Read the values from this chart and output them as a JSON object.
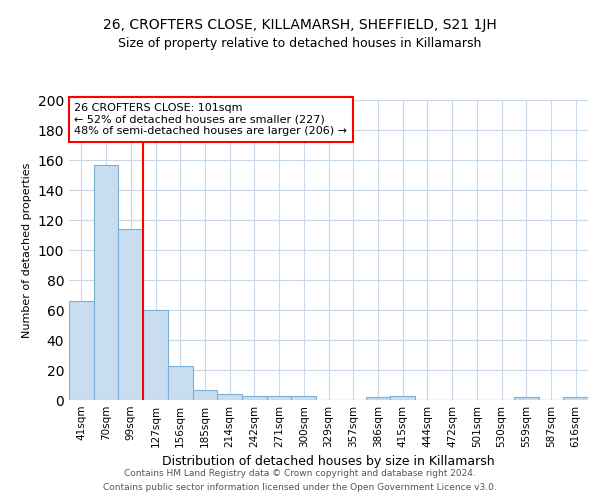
{
  "title1": "26, CROFTERS CLOSE, KILLAMARSH, SHEFFIELD, S21 1JH",
  "title2": "Size of property relative to detached houses in Killamarsh",
  "xlabel": "Distribution of detached houses by size in Killamarsh",
  "ylabel": "Number of detached properties",
  "categories": [
    "41sqm",
    "70sqm",
    "99sqm",
    "127sqm",
    "156sqm",
    "185sqm",
    "214sqm",
    "242sqm",
    "271sqm",
    "300sqm",
    "329sqm",
    "357sqm",
    "386sqm",
    "415sqm",
    "444sqm",
    "472sqm",
    "501sqm",
    "530sqm",
    "559sqm",
    "587sqm",
    "616sqm"
  ],
  "values": [
    66,
    157,
    114,
    60,
    23,
    7,
    4,
    3,
    3,
    3,
    0,
    0,
    2,
    3,
    0,
    0,
    0,
    0,
    2,
    0,
    2
  ],
  "bar_color": "#c9ddf0",
  "bar_edge_color": "#7bafd4",
  "annotation_text_line1": "26 CROFTERS CLOSE: 101sqm",
  "annotation_text_line2": "← 52% of detached houses are smaller (227)",
  "annotation_text_line3": "48% of semi-detached houses are larger (206) →",
  "annotation_box_color": "white",
  "annotation_box_edge_color": "red",
  "vline_color": "red",
  "vline_x": 2.5,
  "footer1": "Contains HM Land Registry data © Crown copyright and database right 2024.",
  "footer2": "Contains public sector information licensed under the Open Government Licence v3.0.",
  "ylim": [
    0,
    200
  ],
  "yticks": [
    0,
    20,
    40,
    60,
    80,
    100,
    120,
    140,
    160,
    180,
    200
  ],
  "background_color": "#ffffff",
  "plot_bg_color": "#ffffff",
  "grid_color": "#c8d8e8",
  "title1_fontsize": 10,
  "title2_fontsize": 9,
  "xlabel_fontsize": 9,
  "ylabel_fontsize": 8,
  "tick_fontsize": 7.5,
  "annot_fontsize": 8,
  "footer_fontsize": 6.5
}
